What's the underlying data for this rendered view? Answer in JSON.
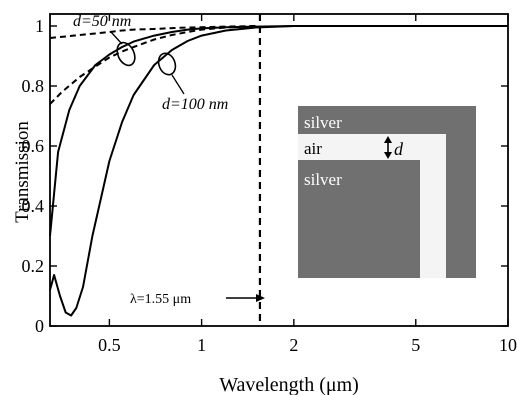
{
  "chart_data": {
    "type": "line",
    "xlabel": "Wavelength (μm)",
    "ylabel": "Transmission",
    "xscale": "log",
    "xlim": [
      0.32,
      10
    ],
    "ylim": [
      0,
      1.04
    ],
    "x_ticks": [
      0.5,
      1,
      2,
      5,
      10
    ],
    "x_tick_labels": [
      "0.5",
      "1",
      "2",
      "5",
      "10"
    ],
    "y_ticks": [
      0,
      0.2,
      0.4,
      0.6,
      0.8,
      1
    ],
    "y_tick_labels": [
      "0",
      "0.2",
      "0.4",
      "0.6",
      "0.8",
      "1"
    ],
    "grid": false,
    "series": [
      {
        "label": "d=50 nm",
        "style": "solid",
        "x": [
          0.32,
          0.34,
          0.37,
          0.4,
          0.45,
          0.5,
          0.55,
          0.6,
          0.7,
          0.8,
          0.9,
          1.0,
          1.2,
          1.5,
          2,
          3,
          5,
          10
        ],
        "y": [
          0.3,
          0.58,
          0.72,
          0.8,
          0.87,
          0.905,
          0.93,
          0.948,
          0.968,
          0.98,
          0.988,
          0.992,
          0.996,
          0.998,
          1,
          1,
          1,
          1
        ]
      },
      {
        "label": "d=50 nm",
        "style": "dashed",
        "x": [
          0.32,
          0.36,
          0.4,
          0.45,
          0.5,
          0.55,
          0.6,
          0.7,
          0.8,
          0.9,
          1.0,
          1.2,
          1.5
        ],
        "y": [
          0.96,
          0.965,
          0.97,
          0.975,
          0.98,
          0.985,
          0.988,
          0.99,
          0.993,
          0.995,
          0.996,
          0.998,
          1
        ]
      },
      {
        "label": "d=100 nm",
        "style": "solid",
        "x": [
          0.32,
          0.33,
          0.345,
          0.36,
          0.375,
          0.39,
          0.41,
          0.44,
          0.5,
          0.55,
          0.6,
          0.7,
          0.8,
          0.9,
          1.0,
          1.2,
          1.5,
          2,
          3,
          5,
          10
        ],
        "y": [
          0.12,
          0.17,
          0.1,
          0.045,
          0.035,
          0.06,
          0.13,
          0.3,
          0.55,
          0.68,
          0.77,
          0.87,
          0.92,
          0.95,
          0.968,
          0.985,
          0.995,
          1,
          1,
          1,
          1
        ]
      },
      {
        "label": "d=100 nm",
        "style": "dashed",
        "x": [
          0.32,
          0.35,
          0.4,
          0.45,
          0.5,
          0.55,
          0.6,
          0.7,
          0.8,
          0.9,
          1.0,
          1.2,
          1.5
        ],
        "y": [
          0.74,
          0.78,
          0.83,
          0.865,
          0.895,
          0.915,
          0.93,
          0.955,
          0.97,
          0.98,
          0.988,
          0.995,
          1
        ]
      }
    ],
    "vline": {
      "x": 1.55,
      "style": "dashed"
    },
    "annotations": {
      "d50": "d=50 nm",
      "d100": "d=100 nm",
      "lambda": "λ=1.55 μm"
    },
    "inset": {
      "silver_top": "silver",
      "air": "air",
      "gap": "d",
      "silver_bottom": "silver",
      "colors": {
        "silver": "#707070",
        "air": "#f4f4f4"
      }
    }
  }
}
